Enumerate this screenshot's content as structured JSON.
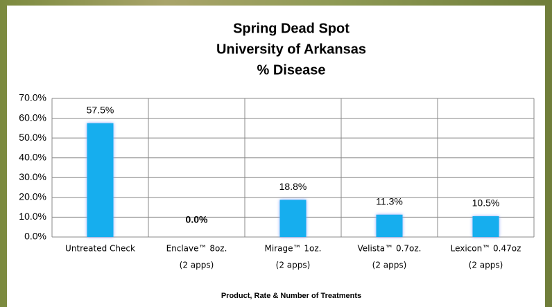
{
  "chart_data": {
    "type": "bar",
    "title": [
      "Spring Dead Spot",
      "University of Arkansas",
      "% Disease"
    ],
    "categories": [
      [
        "Untreated Check"
      ],
      [
        "Enclave™ 8oz.",
        "(2 apps)"
      ],
      [
        "Mirage™ 1oz.",
        "(2 apps)"
      ],
      [
        "Velista™ 0.7oz.",
        "(2 apps)"
      ],
      [
        "Lexicon™ 0.47oz",
        "(2 apps)"
      ]
    ],
    "values": [
      57.5,
      0,
      18.8,
      11.3,
      10.5
    ],
    "value_labels": [
      "57.5%",
      "0.0%",
      "18.8%",
      "11.3%",
      "10.5%"
    ],
    "color": "#19aeee",
    "x_label": "Product, Rate & Number of Treatments",
    "ylim": [
      0,
      70
    ],
    "yticks": [
      {
        "value": 0,
        "label": "0.0%"
      },
      {
        "value": 10,
        "label": "10.0%"
      },
      {
        "value": 20,
        "label": "20.0%"
      },
      {
        "value": 30,
        "label": "30.0%"
      },
      {
        "value": 40,
        "label": "40.0%"
      },
      {
        "value": 50,
        "label": "50.0%"
      },
      {
        "value": 60,
        "label": "60.0%"
      },
      {
        "value": 70,
        "label": "70.0%"
      }
    ],
    "grid": true
  }
}
